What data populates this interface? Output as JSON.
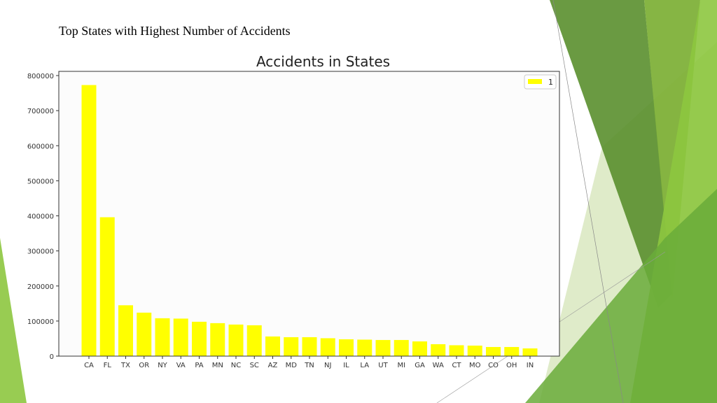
{
  "slide": {
    "title": "Top States with Highest Number of Accidents"
  },
  "colors": {
    "bar": "#ffff00",
    "plot_bg": "#fcfcfc",
    "axis": "#333333",
    "decor_dark_green": "#5a8f2e",
    "decor_light_green": "#8dc63f",
    "decor_pale_green": "#d9e8c0"
  },
  "chart_data": {
    "type": "bar",
    "title": "Accidents in States",
    "xlabel": "",
    "ylabel": "",
    "categories": [
      "CA",
      "FL",
      "TX",
      "OR",
      "NY",
      "VA",
      "PA",
      "MN",
      "NC",
      "SC",
      "AZ",
      "MD",
      "TN",
      "NJ",
      "IL",
      "LA",
      "UT",
      "MI",
      "GA",
      "WA",
      "CT",
      "MO",
      "CO",
      "OH",
      "IN"
    ],
    "series": [
      {
        "name": "1",
        "values": [
          773000,
          396000,
          145000,
          124000,
          108000,
          107000,
          98000,
          94000,
          90000,
          88000,
          56000,
          54000,
          54000,
          51000,
          48000,
          47000,
          46000,
          46000,
          42000,
          34000,
          31000,
          30000,
          26000,
          26000,
          22000
        ]
      }
    ],
    "ylim": [
      0,
      812000
    ],
    "yticks": [
      0,
      100000,
      200000,
      300000,
      400000,
      500000,
      600000,
      700000,
      800000
    ],
    "grid": false,
    "legend": "top-right"
  }
}
